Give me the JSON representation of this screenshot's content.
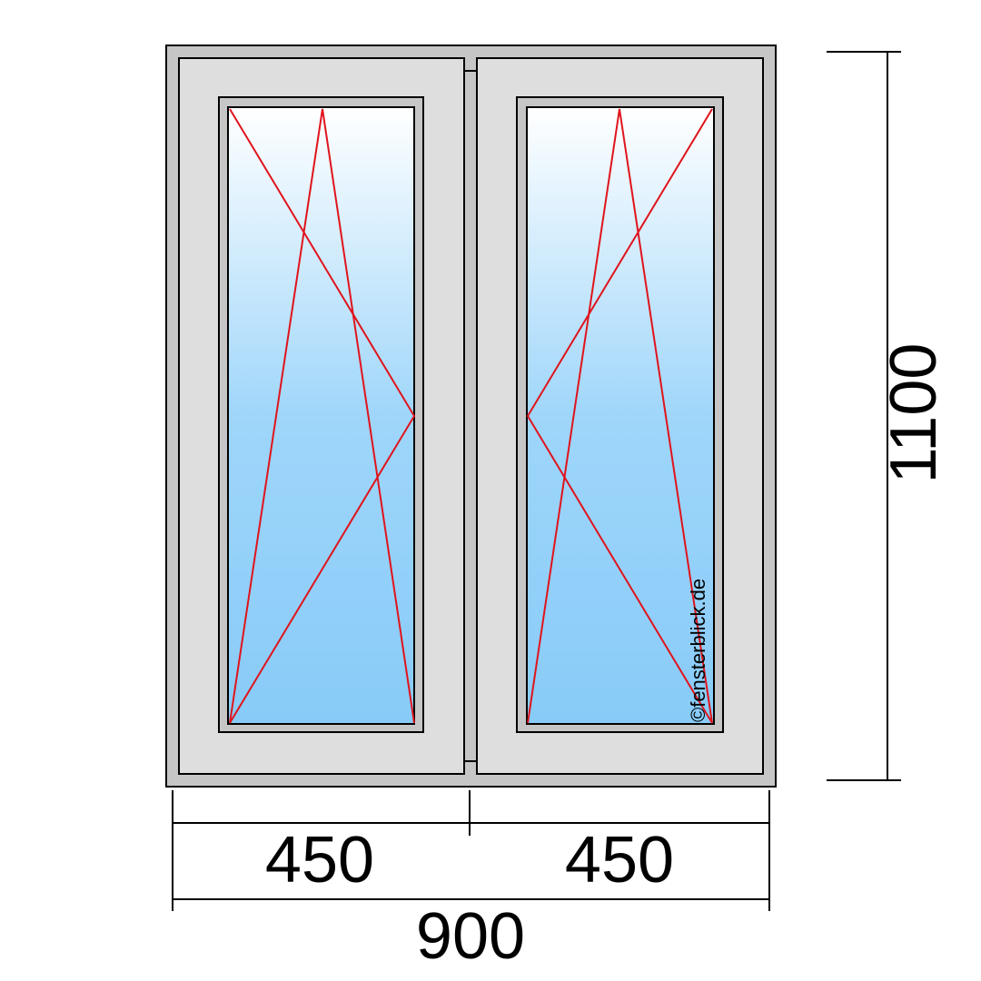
{
  "dimensions": {
    "height": "1100",
    "left_sash_width": "450",
    "right_sash_width": "450",
    "total_width": "900"
  },
  "watermark": "©fensterblick.de",
  "colors": {
    "frame": "#c6c6c6",
    "sash": "#dedede",
    "glass_top": "#ffffff",
    "glass_bottom": "#88cbf8",
    "opening_lines": "#e0141c"
  }
}
